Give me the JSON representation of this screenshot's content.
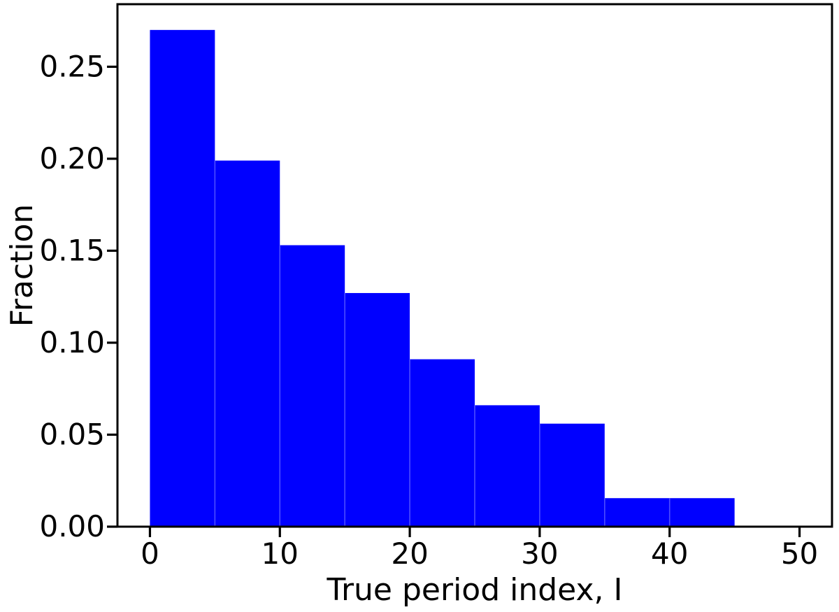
{
  "figure": {
    "background": "#ffffff"
  },
  "chart_data": {
    "type": "bar",
    "subtype": "histogram",
    "title": "",
    "xlabel": "True period index, I",
    "ylabel": "Fraction",
    "bin_edges": [
      0,
      5,
      10,
      15,
      20,
      25,
      30,
      35,
      40,
      45
    ],
    "values": [
      0.27,
      0.199,
      0.153,
      0.127,
      0.091,
      0.066,
      0.056,
      0.0155,
      0.0155
    ],
    "xlim": [
      -2.5,
      52.5
    ],
    "ylim": [
      0,
      0.284
    ],
    "xtick_values": [
      0,
      10,
      20,
      30,
      40,
      50
    ],
    "xtick_labels": [
      "0",
      "10",
      "20",
      "30",
      "40",
      "50"
    ],
    "ytick_values": [
      0.0,
      0.05,
      0.1,
      0.15,
      0.2,
      0.25
    ],
    "ytick_labels": [
      "0.00",
      "0.05",
      "0.10",
      "0.15",
      "0.20",
      "0.25"
    ],
    "grid": false,
    "legend": null,
    "bar_color": "#0000ff",
    "bar_seam_color": "#4d4dff",
    "axis_color": "#000000",
    "text_color": "#000000"
  }
}
